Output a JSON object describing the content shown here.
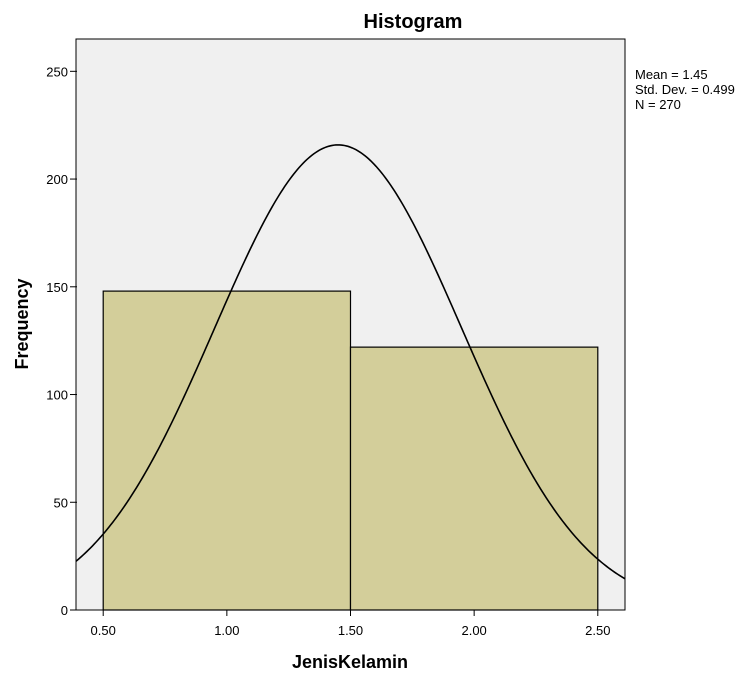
{
  "chart_data": {
    "type": "bar",
    "subtype": "histogram",
    "title": "Histogram",
    "xlabel": "JenisKelamin",
    "ylabel": "Frequency",
    "xlim": [
      0.39,
      2.61
    ],
    "ylim": [
      0,
      265
    ],
    "x_ticks": [
      "0.50",
      "1.00",
      "1.50",
      "2.00",
      "2.50"
    ],
    "y_ticks": [
      "0",
      "50",
      "100",
      "150",
      "200",
      "250"
    ],
    "bins": [
      {
        "x0": 0.5,
        "x1": 1.5,
        "value": 148
      },
      {
        "x0": 1.5,
        "x1": 2.5,
        "value": 122
      }
    ],
    "normal_curve": {
      "mean": 1.45,
      "std": 0.499,
      "n": 270,
      "bin_width": 1.0
    },
    "stats": [
      "Mean = 1.45",
      "Std. Dev. = 0.499",
      "N = 270"
    ],
    "colors": {
      "plot_bg": "#f0f0f0",
      "bar_fill": "#d3ce9a",
      "bar_stroke": "#000000",
      "curve": "#000000"
    },
    "grid": false,
    "legend": "none"
  }
}
